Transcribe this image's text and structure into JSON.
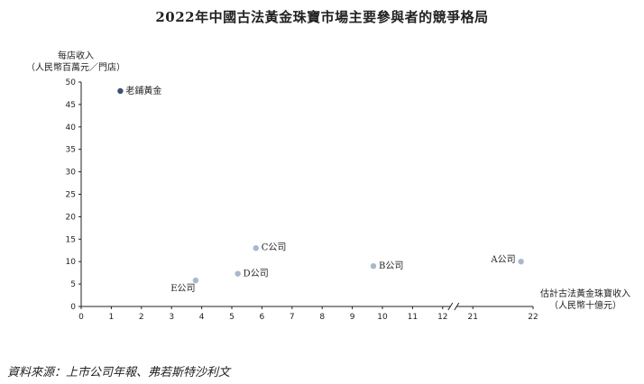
{
  "chart_data": {
    "type": "scatter",
    "title": "2022年中國古法黃金珠寶市場主要參與者的競爭格局",
    "ylabel_lines": [
      "每店收入",
      "（人民幣百萬元／門店）"
    ],
    "xlabel_lines": [
      "估計古法黃金珠寶收入",
      "（人民幣十億元）"
    ],
    "ylim": [
      0,
      50
    ],
    "y_ticks": [
      "0",
      "5",
      "10",
      "15",
      "20",
      "25",
      "30",
      "35",
      "40",
      "45",
      "50"
    ],
    "x_ticks": [
      "0",
      "1",
      "2",
      "3",
      "4",
      "5",
      "6",
      "7",
      "8",
      "9",
      "10",
      "11",
      "12",
      "21",
      "22"
    ],
    "x_axis_break": [
      12,
      20
    ],
    "points": [
      {
        "label": "老鋪黃金",
        "x": 1.3,
        "y": 48,
        "highlight": true
      },
      {
        "label": "C公司",
        "x": 5.8,
        "y": 13
      },
      {
        "label": "B公司",
        "x": 9.7,
        "y": 9
      },
      {
        "label": "A公司",
        "x": 21.8,
        "y": 10
      },
      {
        "label": "D公司",
        "x": 5.2,
        "y": 7.3
      },
      {
        "label": "E公司",
        "x": 3.8,
        "y": 5.8
      }
    ],
    "colors": {
      "highlight": "#3d5273",
      "normal": "#a9b8cc",
      "axis": "#222222"
    }
  },
  "source": "資料來源：上市公司年報、弗若斯特沙利文"
}
